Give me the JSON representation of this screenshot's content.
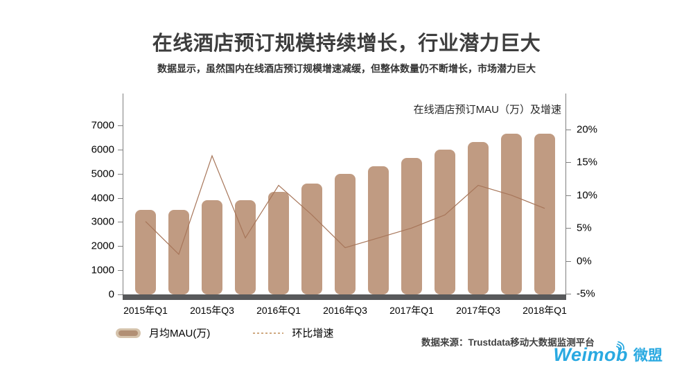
{
  "header": {
    "title": "在线酒店预订规模持续增长，行业潜力巨大",
    "subtitle": "数据显示，虽然国内在线酒店预订规模增速减缓，但整体数量仍不断增长，市场潜力巨大"
  },
  "chart_data": {
    "type": "bar",
    "title": "在线酒店预订MAU（万）及增速",
    "categories": [
      "2015年Q1",
      "2015年Q2",
      "2015年Q3",
      "2015年Q4",
      "2016年Q1",
      "2016年Q2",
      "2016年Q3",
      "2016年Q4",
      "2017年Q1",
      "2017年Q2",
      "2017年Q3",
      "2017年Q4",
      "2018年Q1"
    ],
    "series": [
      {
        "name": "月均MAU(万)",
        "type": "bar",
        "axis": "left",
        "values": [
          3500,
          3500,
          3900,
          3900,
          4250,
          4600,
          5000,
          5300,
          5650,
          6000,
          6300,
          6650,
          6650
        ]
      },
      {
        "name": "环比增速",
        "type": "line",
        "axis": "right",
        "values": [
          6,
          1,
          16,
          3.5,
          11.5,
          7,
          2,
          3.5,
          5,
          7,
          11.5,
          10,
          8
        ]
      }
    ],
    "left_axis": {
      "label": "",
      "min": 0,
      "max": 7000,
      "tick_step": 1000,
      "ticks": [
        "0",
        "1000",
        "2000",
        "3000",
        "4000",
        "5000",
        "6000",
        "7000"
      ],
      "tick_values": [
        0,
        1000,
        2000,
        3000,
        4000,
        5000,
        6000,
        7000
      ]
    },
    "right_axis": {
      "label": "",
      "min": -5,
      "max": 20,
      "tick_step": 5,
      "ticks": [
        "-5%",
        "0%",
        "5%",
        "10%",
        "15%",
        "20%"
      ],
      "tick_values": [
        -5,
        0,
        5,
        10,
        15,
        20
      ]
    },
    "x_tick_labels": [
      "2015年Q1",
      "2015年Q3",
      "2016年Q1",
      "2016年Q3",
      "2017年Q1",
      "2017年Q3",
      "2018年Q1"
    ],
    "x_tick_every": 2,
    "grid": false,
    "legend_position": "bottom-left",
    "colors": {
      "bar": "#C09B82",
      "line": "#A7765A",
      "baseline": "#58595B",
      "axis": "#7F7F7F"
    }
  },
  "legend": {
    "items": [
      {
        "label": "月均MAU(万)",
        "swatch": "bar"
      },
      {
        "label": "环比增速",
        "swatch": "dashed-line"
      }
    ]
  },
  "footer": {
    "source": "数据来源：Trustdata移动大数据监测平台",
    "logo": {
      "latin": "Weimob",
      "cn": "微盟",
      "color": "#29A9E1",
      "icon": "signal-waves-icon"
    }
  }
}
